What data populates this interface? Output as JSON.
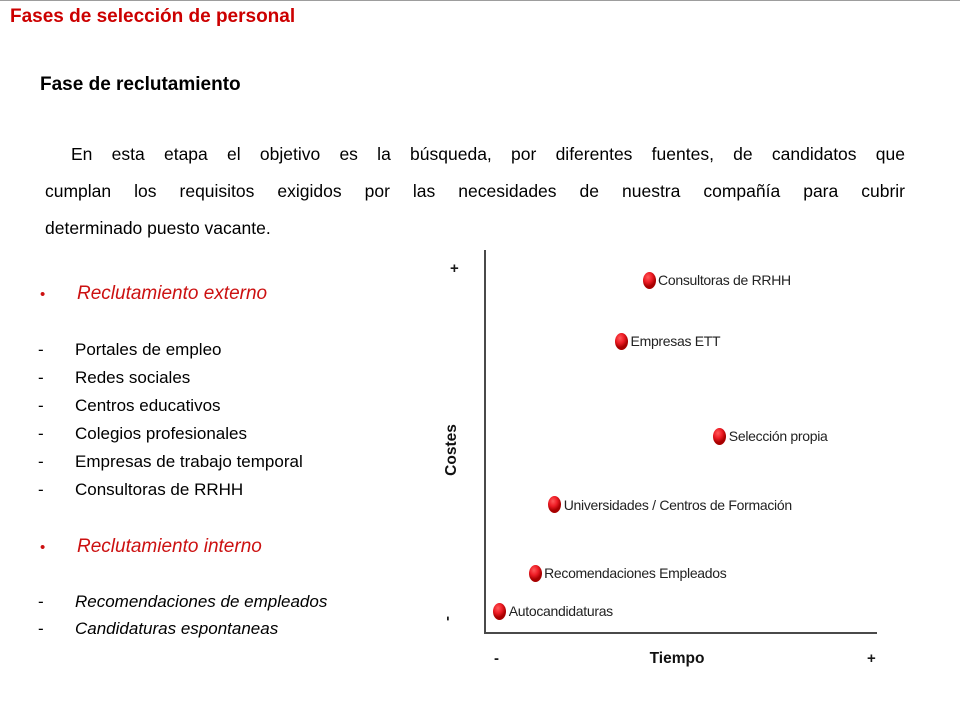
{
  "page": {
    "title": "Fases de selección de personal",
    "section_heading": "Fase de reclutamiento",
    "paragraph_lines": [
      "En esta etapa el objetivo es la búsqueda, por diferentes fuentes, de candidatos que",
      "cumplan los requisitos exigidos por las necesidades de nuestra compañía para cubrir",
      "determinado puesto vacante."
    ]
  },
  "bullet_sections": [
    {
      "heading": "Reclutamiento externo",
      "bullet_glyph": "•",
      "items": [
        "Portales de empleo",
        "Redes sociales",
        "Centros educativos",
        "Colegios profesionales",
        "Empresas de trabajo temporal",
        "Consultoras de RRHH"
      ]
    },
    {
      "heading": "Reclutamiento interno",
      "bullet_glyph": "•",
      "items": [
        "Recomendaciones de empleados",
        "Candidaturas espontaneas"
      ]
    }
  ],
  "chart_data": {
    "type": "scatter",
    "xlabel": "Tiempo",
    "ylabel": "Costes",
    "x_axis_min_label": "-",
    "x_axis_max_label": "+",
    "y_axis_min_label": "-",
    "y_axis_max_label": "+",
    "x_range": [
      0,
      1
    ],
    "y_range": [
      0,
      1
    ],
    "grid": false,
    "points": [
      {
        "label": "Consultoras de RRHH",
        "tiempo": 0.42,
        "costes": 0.92
      },
      {
        "label": "Empresas ETT",
        "tiempo": 0.35,
        "costes": 0.76
      },
      {
        "label": "Selección propia",
        "tiempo": 0.6,
        "costes": 0.51
      },
      {
        "label": "Universidades / Centros de Formación",
        "tiempo": 0.18,
        "costes": 0.33
      },
      {
        "label": "Recomendaciones Empleados",
        "tiempo": 0.13,
        "costes": 0.15
      },
      {
        "label": "Autocandidaturas",
        "tiempo": 0.04,
        "costes": 0.05
      }
    ]
  },
  "colors": {
    "title_red": "#cc0000",
    "bullet_red": "#cc1111",
    "dot_red": "#ee1c25",
    "axis_gray": "#4a4a4a"
  }
}
